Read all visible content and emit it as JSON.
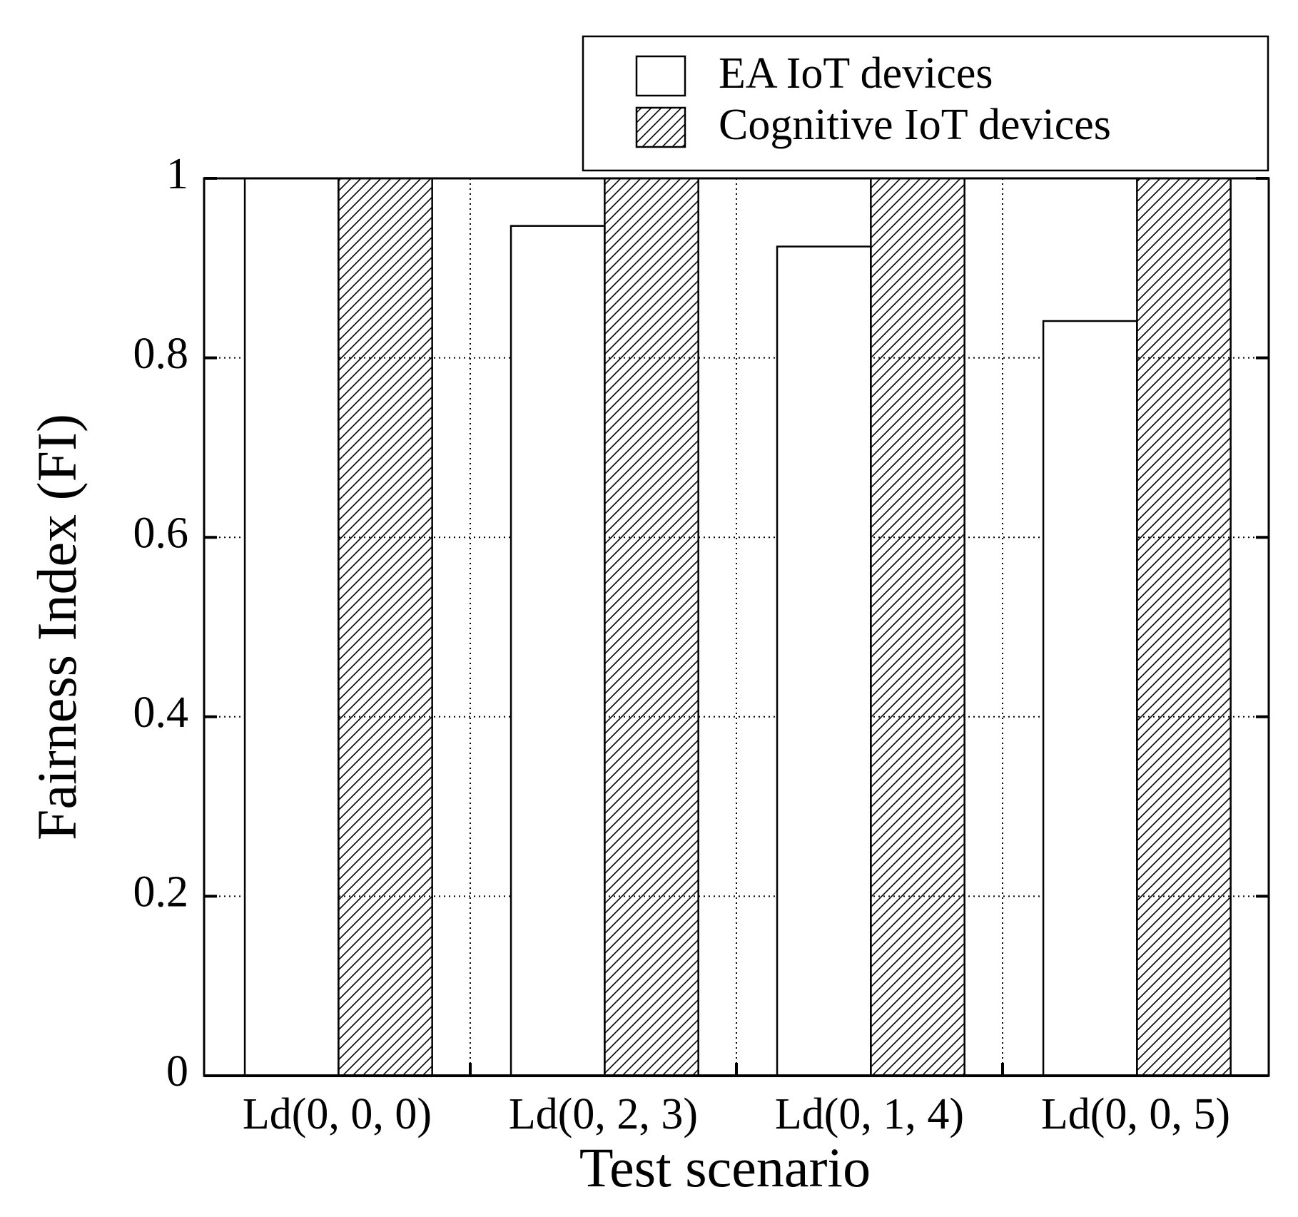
{
  "chart_data": {
    "type": "bar",
    "x_label": "Test scenario",
    "y_label": "Fairness Index (FI)",
    "categories": [
      "Ld(0, 0, 0)",
      "Ld(0, 2, 3)",
      "Ld(0, 1, 4)",
      "Ld(0, 0, 5)"
    ],
    "series": [
      {
        "name": "EA IoT devices",
        "color": "#ffffff",
        "hatch": false,
        "values": [
          1.0,
          0.947,
          0.924,
          0.841
        ]
      },
      {
        "name": "Cognitive IoT devices",
        "color": "#ffffff",
        "hatch": true,
        "values": [
          1.0,
          1.0,
          1.0,
          1.0
        ]
      }
    ],
    "ylim": [
      0,
      1
    ],
    "yticks": [
      0,
      0.2,
      0.4,
      0.6,
      0.8,
      1
    ],
    "grid": true,
    "legend": "top-right"
  }
}
